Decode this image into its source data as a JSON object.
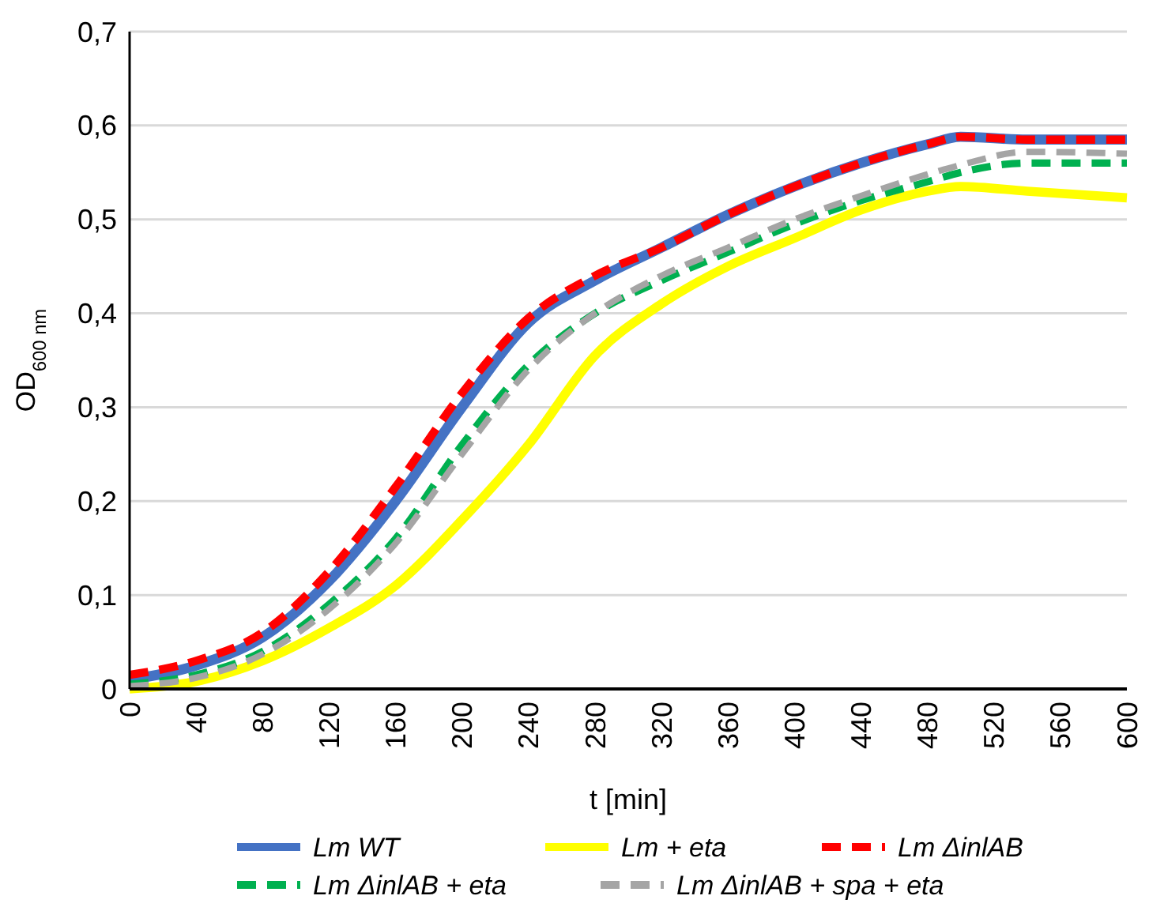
{
  "chart_data": {
    "type": "line",
    "xlabel": "t [min]",
    "ylabel": "OD$_{600 nm}$",
    "x": [
      0,
      40,
      80,
      120,
      160,
      200,
      240,
      280,
      320,
      360,
      400,
      440,
      480,
      500,
      540,
      600
    ],
    "xlim": [
      0,
      600
    ],
    "xticks": [
      0,
      40,
      80,
      120,
      160,
      200,
      240,
      280,
      320,
      360,
      400,
      440,
      480,
      520,
      560,
      600
    ],
    "ylim": [
      0,
      0.7
    ],
    "yticks": [
      {
        "value": 0,
        "label": "0"
      },
      {
        "value": 0.1,
        "label": "0,1"
      },
      {
        "value": 0.2,
        "label": "0,2"
      },
      {
        "value": 0.3,
        "label": "0,3"
      },
      {
        "value": 0.4,
        "label": "0,4"
      },
      {
        "value": 0.5,
        "label": "0,5"
      },
      {
        "value": 0.6,
        "label": "0,6"
      },
      {
        "value": 0.7,
        "label": "0,7"
      }
    ],
    "grid": "y",
    "legend": "bottom",
    "marker": "none",
    "series": [
      {
        "name": "Lm WT",
        "color": "#4472c4",
        "line_style": "solid",
        "values": [
          0.01,
          0.025,
          0.055,
          0.115,
          0.2,
          0.3,
          0.39,
          0.435,
          0.47,
          0.505,
          0.535,
          0.56,
          0.58,
          0.588,
          0.585,
          0.585
        ]
      },
      {
        "name": "Lm + eta",
        "color": "#ffff00",
        "line_style": "solid",
        "values": [
          0,
          0.008,
          0.03,
          0.065,
          0.11,
          0.18,
          0.26,
          0.355,
          0.41,
          0.45,
          0.48,
          0.51,
          0.53,
          0.535,
          0.53,
          0.523
        ]
      },
      {
        "name": "Lm ΔinlAB",
        "color": "#ff0000",
        "line_style": "dashed",
        "values": [
          0.015,
          0.03,
          0.06,
          0.125,
          0.215,
          0.315,
          0.395,
          0.44,
          0.47,
          0.505,
          0.535,
          0.56,
          0.58,
          0.588,
          0.585,
          0.585
        ]
      },
      {
        "name": "Lm ΔinlAB + eta",
        "color": "#00b050",
        "line_style": "dashed",
        "values": [
          0.005,
          0.015,
          0.04,
          0.09,
          0.16,
          0.26,
          0.345,
          0.4,
          0.435,
          0.465,
          0.495,
          0.52,
          0.54,
          0.55,
          0.56,
          0.56
        ]
      },
      {
        "name": "Lm ΔinlAB + spa + eta",
        "color": "#a5a5a5",
        "line_style": "dashed",
        "values": [
          0.003,
          0.012,
          0.037,
          0.085,
          0.155,
          0.25,
          0.34,
          0.4,
          0.44,
          0.47,
          0.5,
          0.525,
          0.548,
          0.558,
          0.572,
          0.57
        ]
      }
    ]
  }
}
